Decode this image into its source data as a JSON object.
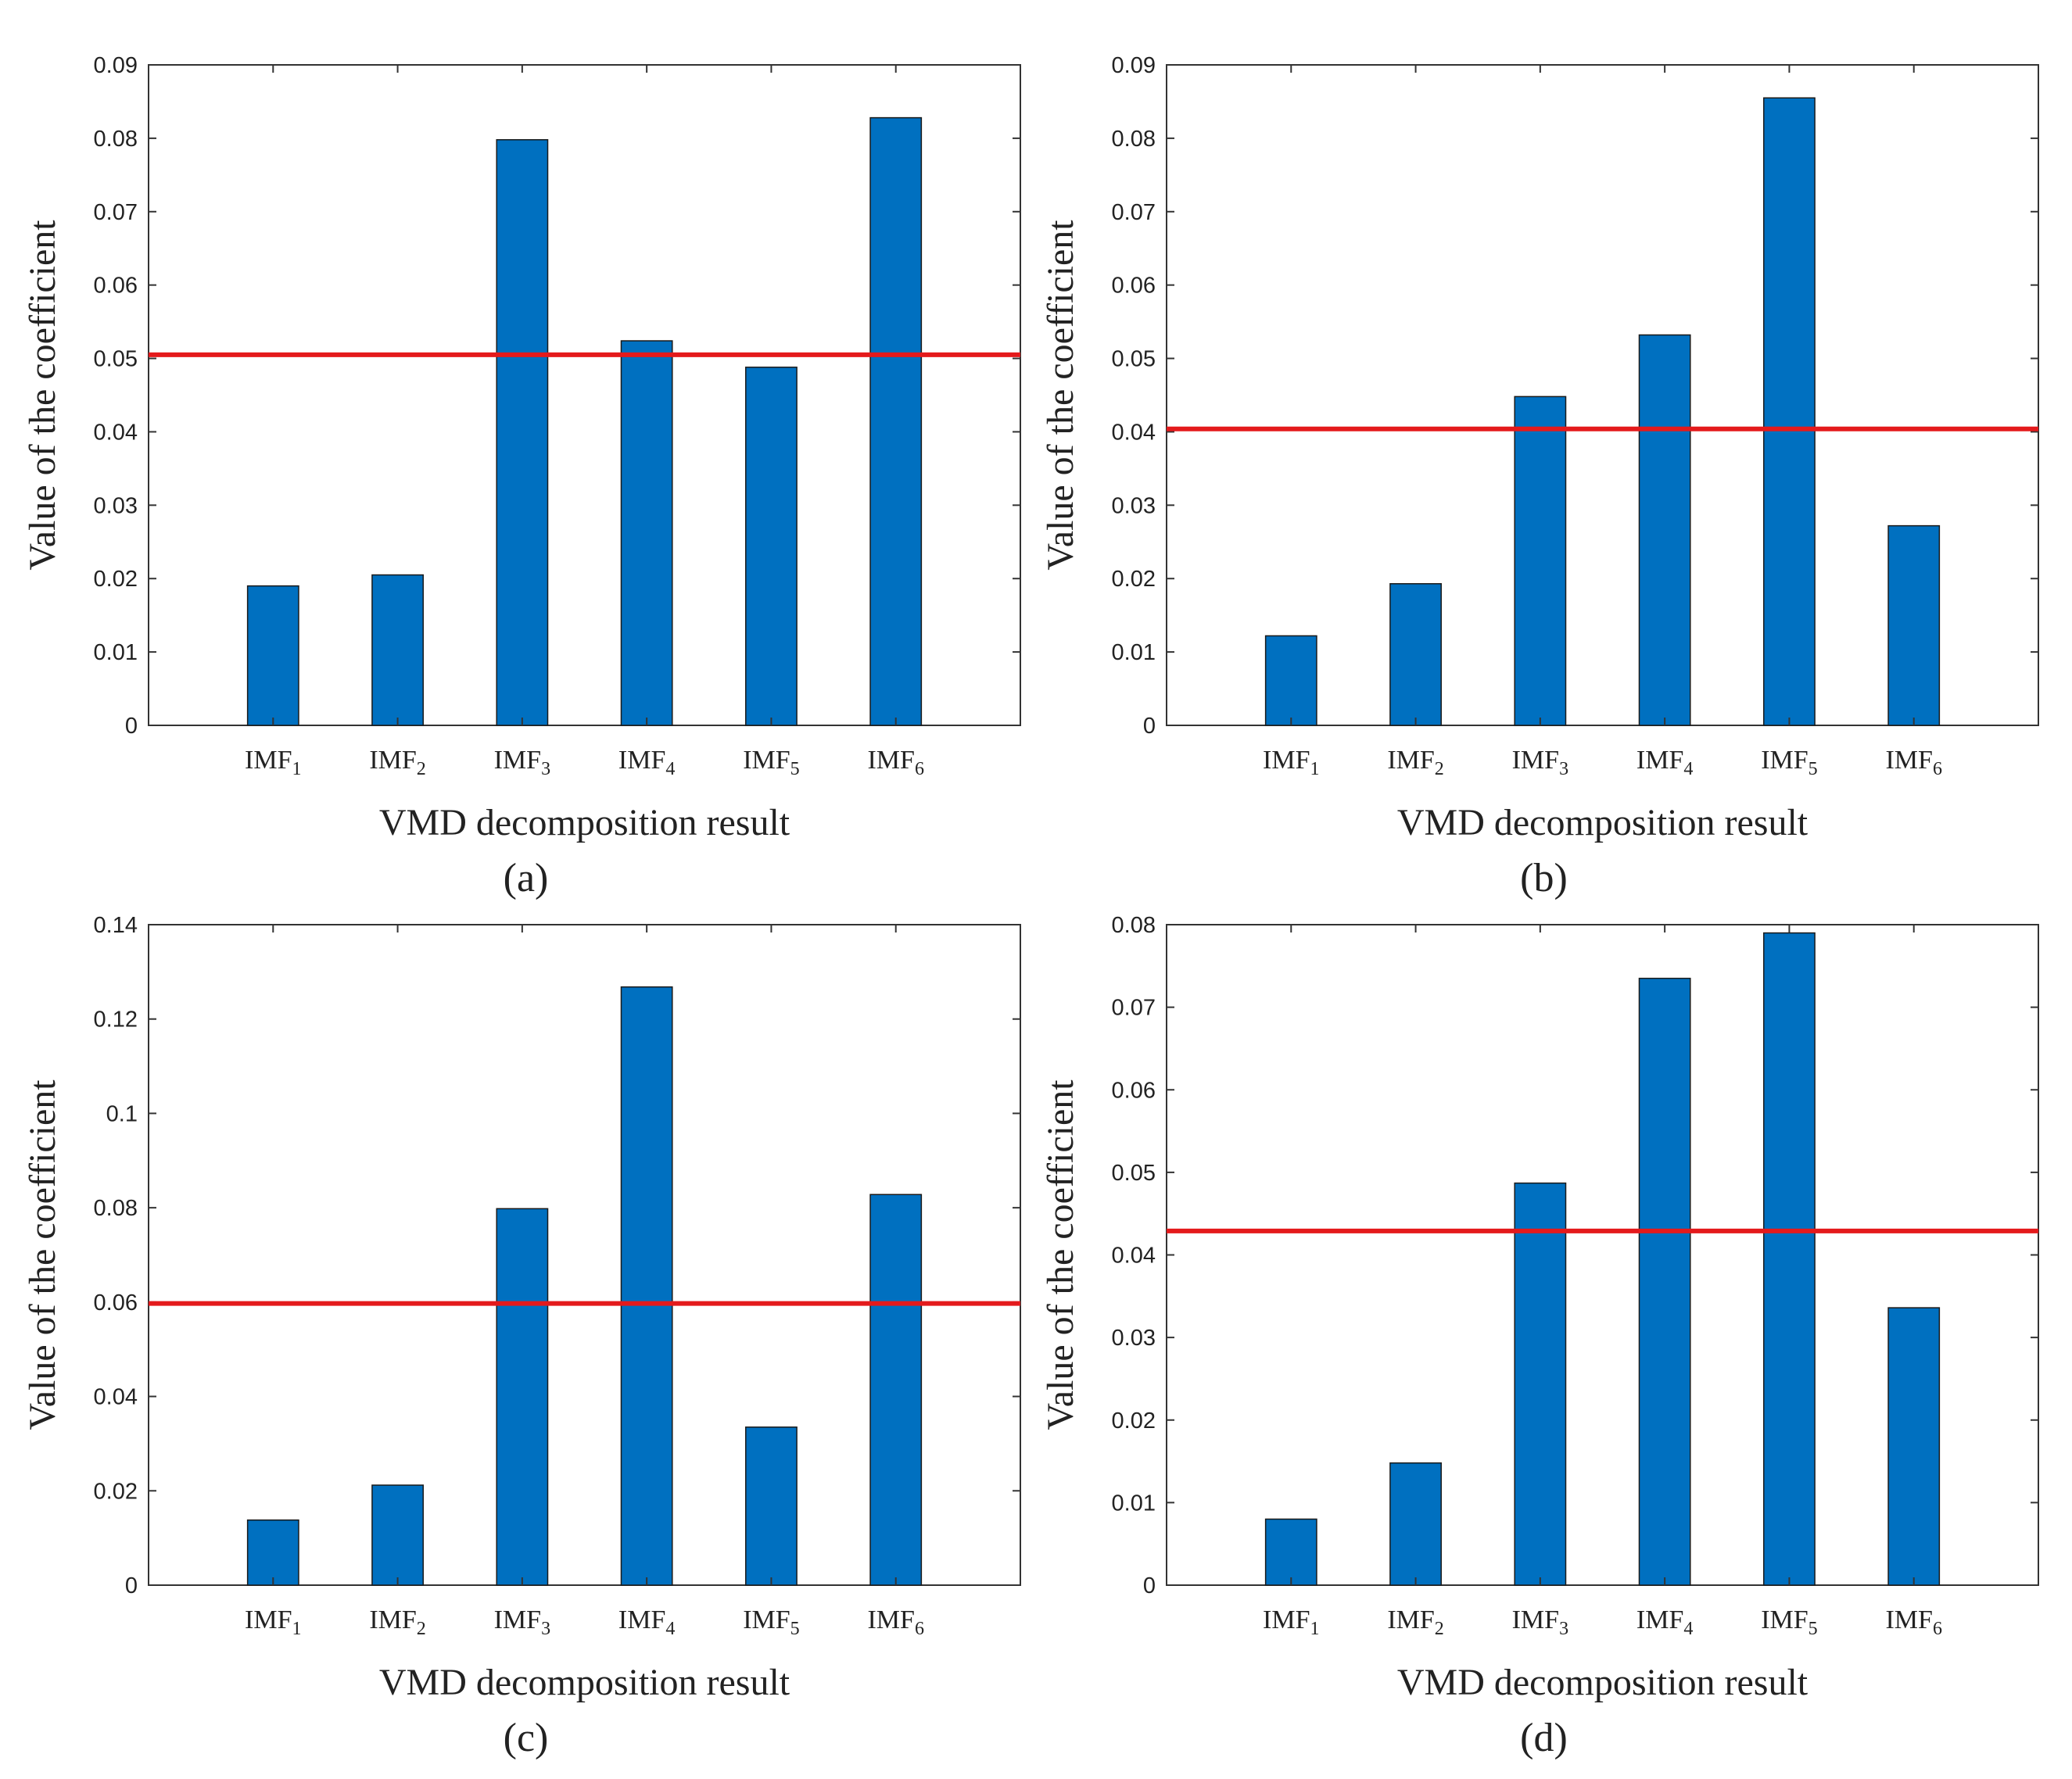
{
  "chart_data": [
    {
      "id": "a",
      "type": "bar",
      "caption": "(a)",
      "categories": [
        "IMF1",
        "IMF2",
        "IMF3",
        "IMF4",
        "IMF5",
        "IMF6"
      ],
      "values": [
        0.019,
        0.0205,
        0.0798,
        0.0524,
        0.0488,
        0.0828
      ],
      "threshold": 0.0505,
      "xlabel": "VMD decomposition result",
      "ylabel": "Value of the coefficient",
      "ylim": [
        0,
        0.09
      ],
      "yticks": [
        "0",
        "0.01",
        "0.02",
        "0.03",
        "0.04",
        "0.05",
        "0.06",
        "0.07",
        "0.08",
        "0.09"
      ],
      "grid": false,
      "bar_color": "#0070C0",
      "threshold_color": "#E41A1C"
    },
    {
      "id": "b",
      "type": "bar",
      "caption": "(b)",
      "categories": [
        "IMF1",
        "IMF2",
        "IMF3",
        "IMF4",
        "IMF5",
        "IMF6"
      ],
      "values": [
        0.0122,
        0.0193,
        0.0448,
        0.0532,
        0.0855,
        0.0272
      ],
      "threshold": 0.0404,
      "xlabel": "VMD decomposition result",
      "ylabel": "Value of the coefficient",
      "ylim": [
        0,
        0.09
      ],
      "yticks": [
        "0",
        "0.01",
        "0.02",
        "0.03",
        "0.04",
        "0.05",
        "0.06",
        "0.07",
        "0.08",
        "0.09"
      ],
      "grid": false,
      "bar_color": "#0070C0",
      "threshold_color": "#E41A1C"
    },
    {
      "id": "c",
      "type": "bar",
      "caption": "(c)",
      "categories": [
        "IMF1",
        "IMF2",
        "IMF3",
        "IMF4",
        "IMF5",
        "IMF6"
      ],
      "values": [
        0.0138,
        0.0212,
        0.0798,
        0.1268,
        0.0335,
        0.0828
      ],
      "threshold": 0.0597,
      "xlabel": "VMD decomposition result",
      "ylabel": "Value of the coefficient",
      "ylim": [
        0,
        0.14
      ],
      "yticks": [
        "0",
        "0.02",
        "0.04",
        "0.06",
        "0.08",
        "0.1",
        "0.12",
        "0.14"
      ],
      "grid": false,
      "bar_color": "#0070C0",
      "threshold_color": "#E41A1C"
    },
    {
      "id": "d",
      "type": "bar",
      "caption": "(d)",
      "categories": [
        "IMF1",
        "IMF2",
        "IMF3",
        "IMF4",
        "IMF5",
        "IMF6"
      ],
      "values": [
        0.008,
        0.0148,
        0.0487,
        0.0735,
        0.079,
        0.0336
      ],
      "threshold": 0.0429,
      "xlabel": "VMD decomposition result",
      "ylabel": "Value of the coefficient",
      "ylim": [
        0,
        0.08
      ],
      "yticks": [
        "0",
        "0.01",
        "0.02",
        "0.03",
        "0.04",
        "0.05",
        "0.06",
        "0.07",
        "0.08"
      ],
      "grid": false,
      "bar_color": "#0070C0",
      "threshold_color": "#E41A1C"
    }
  ]
}
